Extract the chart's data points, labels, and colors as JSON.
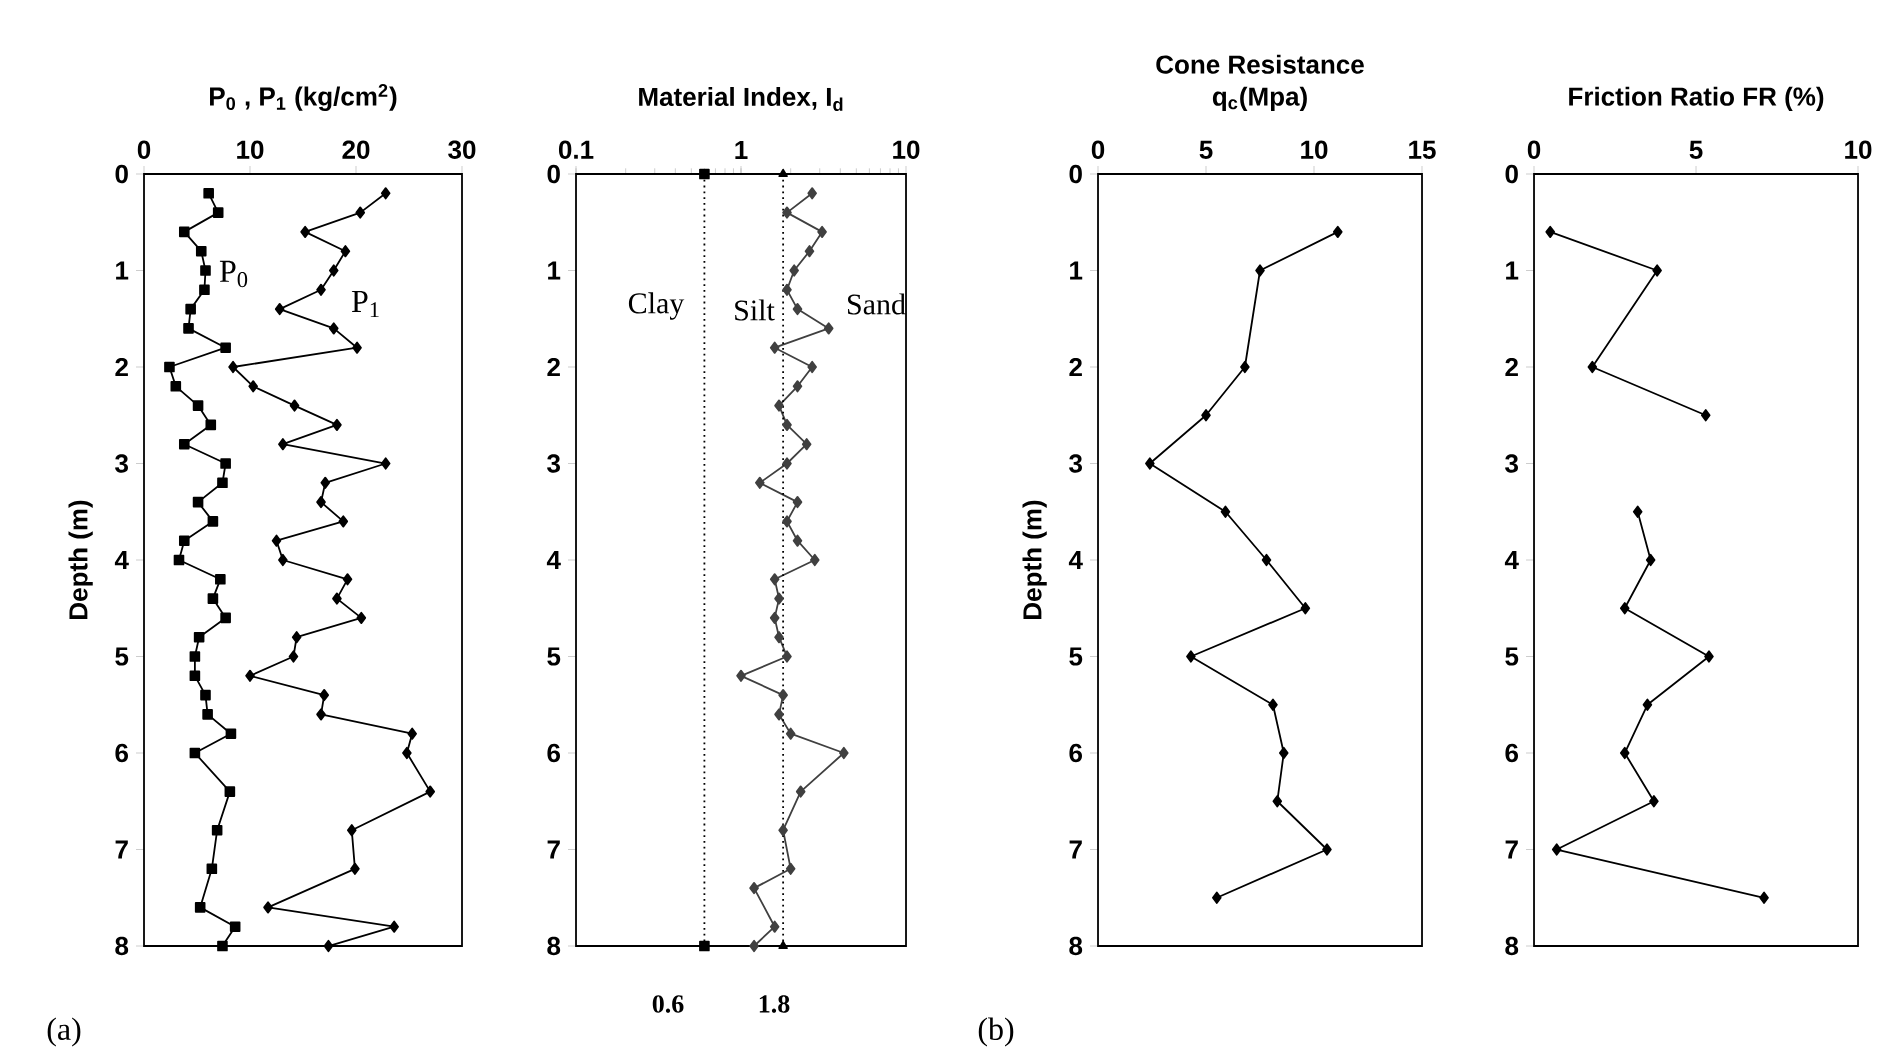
{
  "chart_data": [
    {
      "type": "line",
      "title": "P$_{0}$ , P$_{1}$ (kg/cm$^{2}$)",
      "ylabel": "Depth (m)",
      "xlim": [
        0,
        30
      ],
      "ylim": [
        8,
        0
      ],
      "xticks": [
        0,
        10,
        20,
        30
      ],
      "yticks": [
        0,
        1,
        2,
        3,
        4,
        5,
        6,
        7,
        8
      ],
      "series": [
        {
          "color": "#000000",
          "marker": "square",
          "x": [
            6.1,
            7.0,
            3.8,
            5.4,
            5.8,
            5.7,
            4.4,
            4.2,
            7.7,
            2.4,
            3.0,
            5.1,
            6.3,
            3.8,
            7.7,
            7.4,
            5.1,
            6.5,
            3.8,
            3.3,
            7.2,
            6.5,
            7.7,
            5.2,
            4.8,
            4.8,
            5.8,
            6.0,
            8.2,
            4.8,
            8.1,
            6.9,
            6.4,
            5.3,
            8.6,
            7.4
          ],
          "values": [
            0.2,
            0.4,
            0.6,
            0.8,
            1.0,
            1.2,
            1.4,
            1.6,
            1.8,
            2.0,
            2.2,
            2.4,
            2.6,
            2.8,
            3.0,
            3.2,
            3.4,
            3.6,
            3.8,
            4.0,
            4.2,
            4.4,
            4.6,
            4.8,
            5.0,
            5.2,
            5.4,
            5.6,
            5.8,
            6.0,
            6.4,
            6.8,
            7.2,
            7.6,
            7.8,
            8.0
          ]
        },
        {
          "color": "#000000",
          "marker": "diamond",
          "x": [
            22.8,
            20.4,
            15.2,
            19.0,
            17.9,
            16.7,
            12.8,
            17.9,
            20.1,
            8.4,
            10.3,
            14.2,
            18.2,
            13.1,
            22.8,
            17.1,
            16.7,
            18.8,
            12.5,
            13.1,
            19.2,
            18.2,
            20.5,
            14.4,
            14.1,
            10.0,
            17.0,
            16.7,
            25.3,
            24.8,
            27.0,
            19.6,
            19.9,
            11.7,
            23.6,
            17.4
          ],
          "values": [
            0.2,
            0.4,
            0.6,
            0.8,
            1.0,
            1.2,
            1.4,
            1.6,
            1.8,
            2.0,
            2.2,
            2.4,
            2.6,
            2.8,
            3.0,
            3.2,
            3.4,
            3.6,
            3.8,
            4.0,
            4.2,
            4.4,
            4.6,
            4.8,
            5.0,
            5.2,
            5.4,
            5.6,
            5.8,
            6.0,
            6.4,
            6.8,
            7.2,
            7.6,
            7.8,
            8.0
          ]
        }
      ],
      "annotations": [
        "P$_{0}$",
        "P$_{1}$",
        "(a)"
      ]
    },
    {
      "type": "line",
      "title": "Material Index, I$_{d}$",
      "log": "x",
      "xlim": [
        0.1,
        10
      ],
      "ylim": [
        8,
        0
      ],
      "xticks": [
        0.1,
        1,
        10
      ],
      "yticks": [
        0,
        1,
        2,
        3,
        4,
        5,
        6,
        7,
        8
      ],
      "series": [
        {
          "color": "#404040",
          "marker": "diamond",
          "x": [
            2.7,
            1.9,
            3.1,
            2.6,
            2.1,
            1.9,
            2.2,
            3.4,
            1.6,
            2.7,
            2.2,
            1.7,
            1.9,
            2.5,
            1.9,
            1.3,
            2.2,
            1.9,
            2.2,
            2.8,
            1.6,
            1.7,
            1.6,
            1.7,
            1.9,
            1.0,
            1.8,
            1.7,
            2.0,
            4.2,
            2.3,
            1.8,
            2.0,
            1.2,
            1.6,
            1.2
          ],
          "values": [
            0.2,
            0.4,
            0.6,
            0.8,
            1.0,
            1.2,
            1.4,
            1.6,
            1.8,
            2.0,
            2.2,
            2.4,
            2.6,
            2.8,
            3.0,
            3.2,
            3.4,
            3.6,
            3.8,
            4.0,
            4.2,
            4.4,
            4.6,
            4.8,
            5.0,
            5.2,
            5.4,
            5.6,
            5.8,
            6.0,
            6.4,
            6.8,
            7.2,
            7.4,
            7.8,
            8.0
          ]
        },
        {
          "color": "#000000",
          "marker": "square",
          "line_style": "dotted",
          "x": [
            0.6,
            0.6
          ],
          "values": [
            0,
            8
          ]
        },
        {
          "color": "#000000",
          "marker": "triangle",
          "line_style": "dotted",
          "x": [
            1.8,
            1.8
          ],
          "values": [
            0,
            8
          ]
        }
      ],
      "annotations": [
        "Clay",
        "Silt",
        "Sand",
        "0.6",
        "1.8"
      ]
    },
    {
      "type": "line",
      "title": "Cone Resistance",
      "subtitle": "q$_{c}$(Mpa)",
      "ylabel": "Depth (m)",
      "xlim": [
        0,
        15
      ],
      "ylim": [
        8,
        0
      ],
      "xticks": [
        0,
        5,
        10,
        15
      ],
      "yticks": [
        0,
        1,
        2,
        3,
        4,
        5,
        6,
        7,
        8
      ],
      "series": [
        {
          "color": "#000000",
          "marker": "diamond",
          "x": [
            11.1,
            7.5,
            6.8,
            5.0,
            2.4,
            5.9,
            7.8,
            9.6,
            4.3,
            8.1,
            8.6,
            8.3,
            10.6,
            5.5
          ],
          "values": [
            0.6,
            1.0,
            2.0,
            2.5,
            3.0,
            3.5,
            4.0,
            4.5,
            5.0,
            5.5,
            6.0,
            6.5,
            7.0,
            7.5
          ]
        }
      ],
      "annotations": [
        "(b)"
      ]
    },
    {
      "type": "line",
      "title": "Friction Ratio FR (%)",
      "xlim": [
        0,
        10
      ],
      "ylim": [
        8,
        0
      ],
      "xticks": [
        0,
        5,
        10
      ],
      "yticks": [
        0,
        1,
        2,
        3,
        4,
        5,
        6,
        7,
        8
      ],
      "series": [
        {
          "color": "#000000",
          "marker": "diamond",
          "x": [
            0.5,
            3.8,
            1.8,
            5.3,
            null,
            3.2,
            3.6,
            2.8,
            5.4,
            3.5,
            2.8,
            3.7,
            0.7,
            7.1
          ],
          "values": [
            0.6,
            1.0,
            2.0,
            2.5,
            null,
            3.5,
            4.0,
            4.5,
            5.0,
            5.5,
            6.0,
            6.5,
            7.0,
            7.5
          ]
        }
      ]
    }
  ]
}
